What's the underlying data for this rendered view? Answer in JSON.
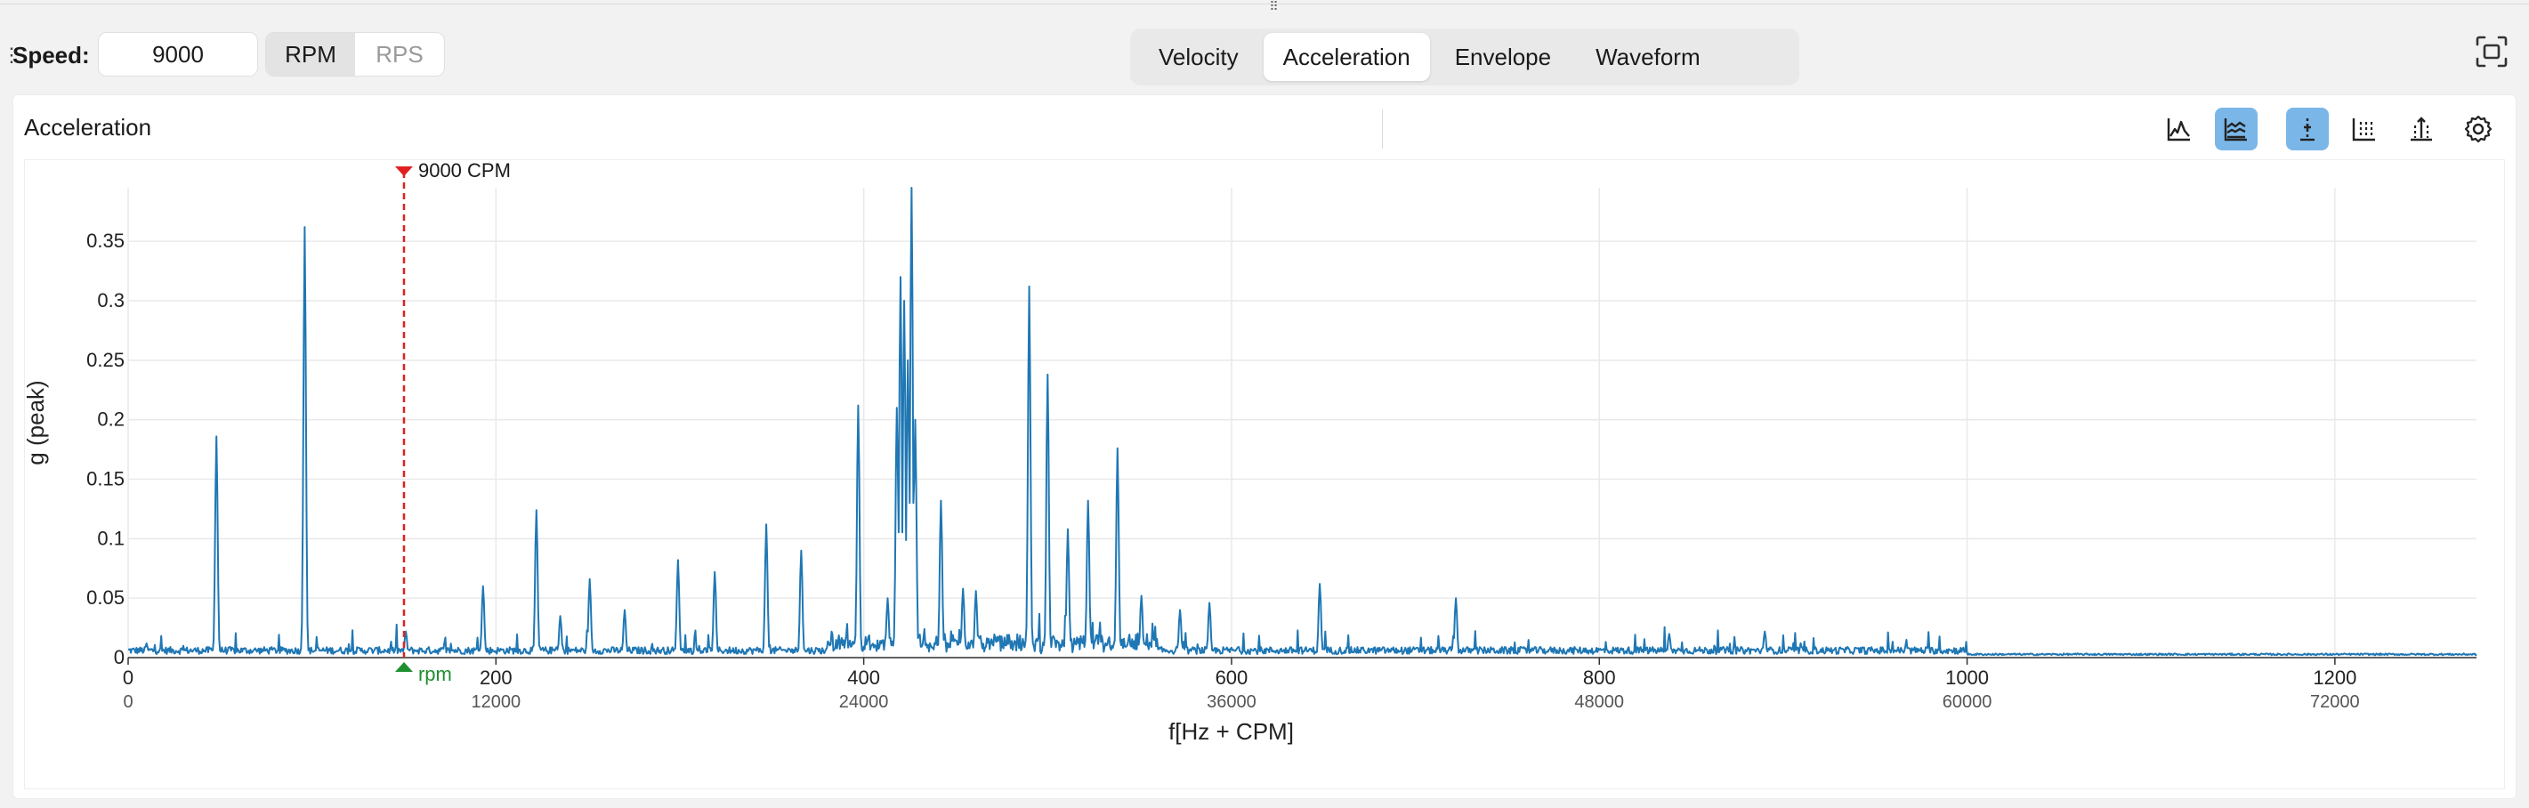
{
  "toolbar": {
    "speed_label": "Speed:",
    "speed_value": "9000",
    "units": [
      {
        "label": "RPM",
        "active": true
      },
      {
        "label": "RPS",
        "active": false
      }
    ],
    "tabs": [
      {
        "label": "Velocity",
        "active": false
      },
      {
        "label": "Acceleration",
        "active": true
      },
      {
        "label": "Envelope",
        "active": false
      },
      {
        "label": "Waveform",
        "active": false
      }
    ]
  },
  "panel": {
    "title": "Acceleration",
    "icons": [
      {
        "name": "spectrum-line-icon",
        "active": false
      },
      {
        "name": "spectrum-fill-icon",
        "active": true
      },
      {
        "name": "cursor-single-icon",
        "active": true
      },
      {
        "name": "cursor-harmonic-icon",
        "active": false
      },
      {
        "name": "cursor-sideband-icon",
        "active": false
      },
      {
        "name": "settings-gear-icon",
        "active": false
      }
    ]
  },
  "colors": {
    "series": "#1f77b4",
    "marker": "#e02020",
    "rpm": "#1f8f2f",
    "grid": "#e9e9e9"
  },
  "chart_data": {
    "type": "line",
    "xlabel": "f[Hz + CPM]",
    "ylabel": "g (peak)",
    "xlim": [
      0,
      1277
    ],
    "ylim": [
      0,
      0.395
    ],
    "x_ticks": [
      {
        "value": 0,
        "label": "0",
        "label2": "0"
      },
      {
        "value": 200,
        "label": "200",
        "label2": "12000"
      },
      {
        "value": 400,
        "label": "400",
        "label2": "24000"
      },
      {
        "value": 600,
        "label": "600",
        "label2": "36000"
      },
      {
        "value": 800,
        "label": "800",
        "label2": "48000"
      },
      {
        "value": 1000,
        "label": "1000",
        "label2": "60000"
      },
      {
        "value": 1200,
        "label": "1200",
        "label2": "72000"
      }
    ],
    "y_ticks": [
      {
        "value": 0,
        "label": "0"
      },
      {
        "value": 0.05,
        "label": "0.05"
      },
      {
        "value": 0.1,
        "label": "0.1"
      },
      {
        "value": 0.15,
        "label": "0.15"
      },
      {
        "value": 0.2,
        "label": "0.2"
      },
      {
        "value": 0.25,
        "label": "0.25"
      },
      {
        "value": 0.3,
        "label": "0.3"
      },
      {
        "value": 0.35,
        "label": "0.35"
      }
    ],
    "speed_marker": {
      "x": 150,
      "label": "9000 CPM"
    },
    "rpm_marker": {
      "x": 150,
      "label": "rpm"
    },
    "grid": true,
    "series": [
      {
        "peaks": [
          [
            10,
            0.012
          ],
          [
            48,
            0.186
          ],
          [
            96,
            0.362
          ],
          [
            151,
            0.022
          ],
          [
            193,
            0.06
          ],
          [
            222,
            0.124
          ],
          [
            235,
            0.035
          ],
          [
            251,
            0.066
          ],
          [
            270,
            0.04
          ],
          [
            299,
            0.082
          ],
          [
            319,
            0.072
          ],
          [
            347,
            0.112
          ],
          [
            366,
            0.09
          ],
          [
            397,
            0.212
          ],
          [
            413,
            0.05
          ],
          [
            418,
            0.21
          ],
          [
            420,
            0.32
          ],
          [
            422,
            0.3
          ],
          [
            424,
            0.25
          ],
          [
            426,
            0.395
          ],
          [
            428,
            0.2
          ],
          [
            442,
            0.132
          ],
          [
            454,
            0.058
          ],
          [
            461,
            0.056
          ],
          [
            490,
            0.312
          ],
          [
            500,
            0.238
          ],
          [
            511,
            0.108
          ],
          [
            522,
            0.132
          ],
          [
            538,
            0.176
          ],
          [
            551,
            0.052
          ],
          [
            572,
            0.04
          ],
          [
            588,
            0.046
          ],
          [
            648,
            0.062
          ],
          [
            722,
            0.05
          ],
          [
            838,
            0.02
          ],
          [
            890,
            0.022
          ]
        ]
      }
    ]
  }
}
